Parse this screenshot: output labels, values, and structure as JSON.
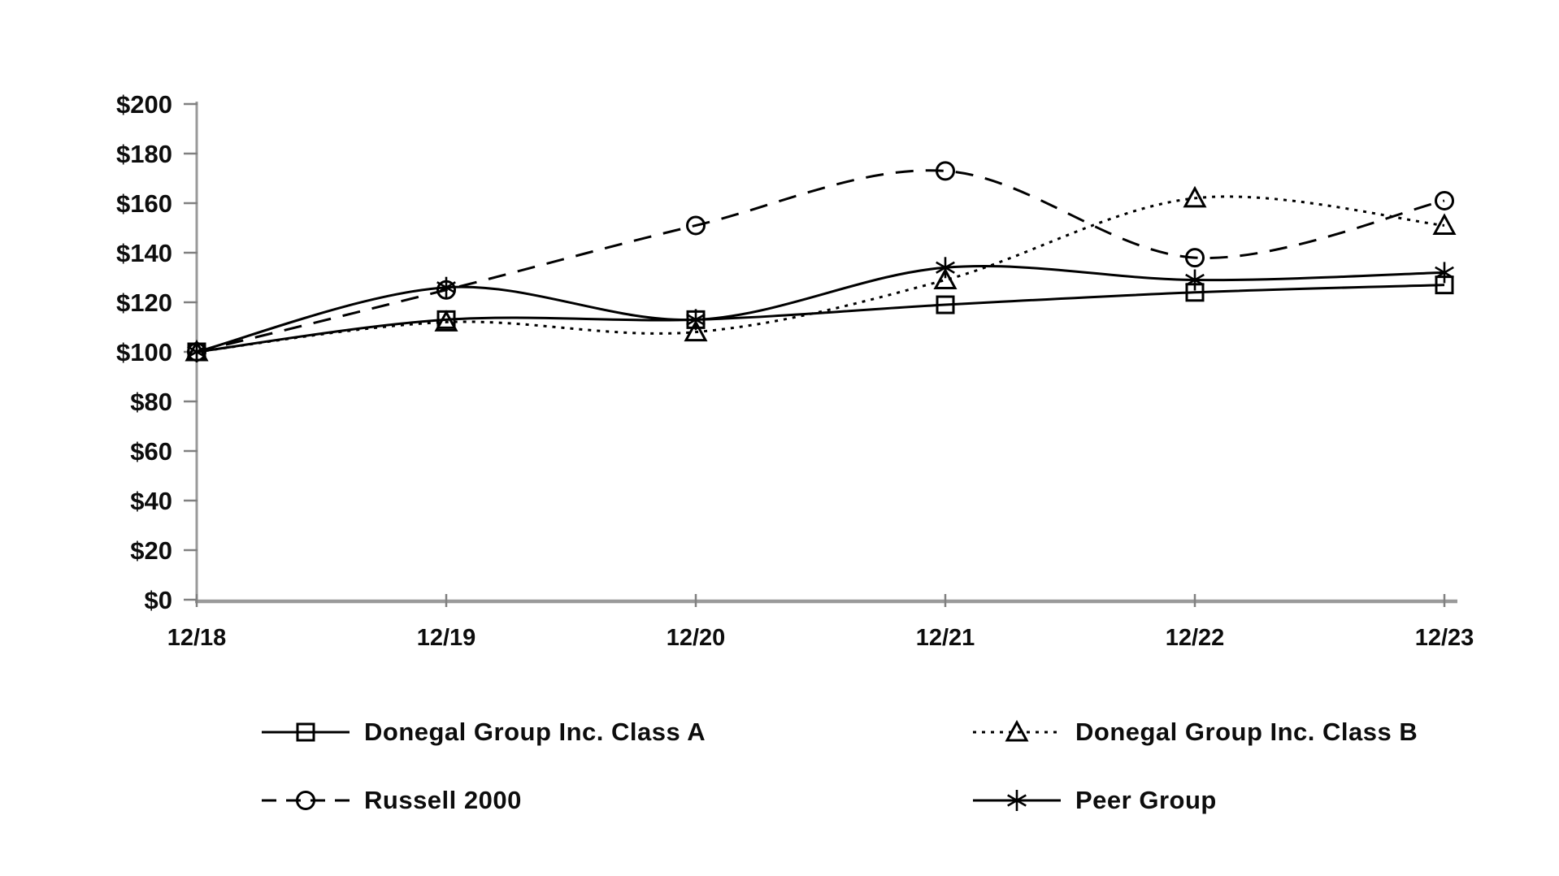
{
  "page": {
    "background_color": "#ffffff",
    "title": ""
  },
  "chart_data": {
    "type": "line",
    "title": "",
    "xlabel": "",
    "ylabel": "",
    "categories": [
      "12/18",
      "12/19",
      "12/20",
      "12/21",
      "12/22",
      "12/23"
    ],
    "y_axis": {
      "min": 0,
      "max": 200,
      "tick_values": [
        0,
        20,
        40,
        60,
        80,
        100,
        120,
        140,
        160,
        180,
        200
      ],
      "tick_labels": [
        "$0",
        "$20",
        "$40",
        "$60",
        "$80",
        "$100",
        "$120",
        "$140",
        "$160",
        "$180",
        "$200"
      ]
    },
    "grid": false,
    "legend_position": "bottom-two-columns",
    "series": [
      {
        "name": "Donegal Group Inc. Class A",
        "marker": "square",
        "line_style": "solid",
        "values": [
          100,
          113,
          113,
          119,
          124,
          127
        ]
      },
      {
        "name": "Donegal Group Inc. Class B",
        "marker": "triangle",
        "line_style": "dotted",
        "values": [
          100,
          112,
          108,
          129,
          162,
          151
        ]
      },
      {
        "name": "Russell 2000",
        "marker": "circle",
        "line_style": "dashed",
        "values": [
          100,
          125,
          151,
          173,
          138,
          161
        ]
      },
      {
        "name": "Peer Group",
        "marker": "asterisk",
        "line_style": "solid",
        "values": [
          100,
          126,
          113,
          134,
          129,
          132
        ]
      }
    ],
    "colors": {
      "series_line": "#000000",
      "axis_line": "#9a9a9a",
      "tick_mark": "#808080",
      "tick_text": "#0d0d0d"
    }
  }
}
